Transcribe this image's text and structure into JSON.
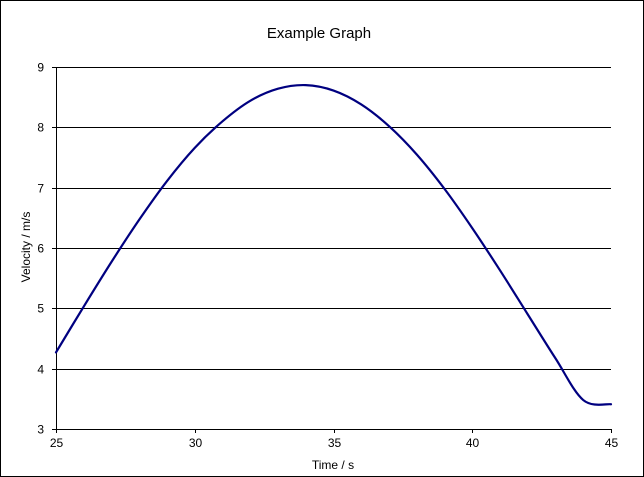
{
  "chart_data": {
    "type": "line",
    "title": "Example Graph",
    "xlabel": "Time  /  s",
    "ylabel": "Velocity  /  m/s",
    "xlim": [
      25,
      45
    ],
    "ylim": [
      3,
      9
    ],
    "x_ticks": [
      "25",
      "30",
      "35",
      "40",
      "45"
    ],
    "y_ticks": [
      "3",
      "4",
      "5",
      "6",
      "7",
      "8",
      "9"
    ],
    "grid": "horizontal",
    "legend": "none",
    "colors": {
      "series": "#000080",
      "grid": "#000000",
      "axis": "#000000",
      "background": "#ffffff"
    },
    "series": [
      {
        "x": [
          25,
          26,
          27,
          28,
          29,
          30,
          31,
          32,
          33,
          34,
          35,
          36,
          37,
          38,
          39,
          40,
          41,
          42,
          43,
          44,
          45
        ],
        "values": [
          4.27,
          5.03,
          5.77,
          6.47,
          7.11,
          7.66,
          8.1,
          8.44,
          8.64,
          8.7,
          8.61,
          8.38,
          8.02,
          7.55,
          6.98,
          6.33,
          5.63,
          4.9,
          4.17,
          3.48,
          3.41
        ]
      }
    ]
  }
}
